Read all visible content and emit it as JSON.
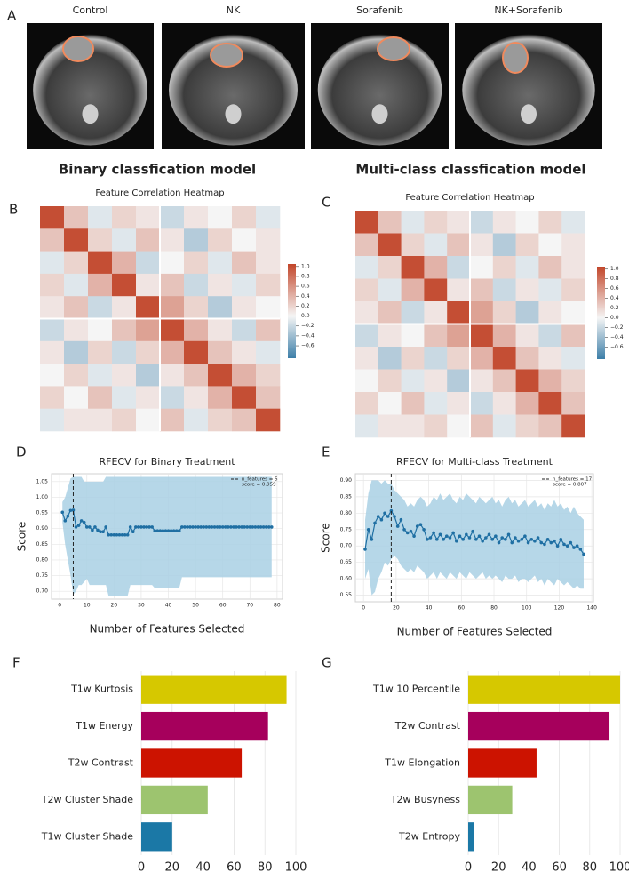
{
  "panel_labels": [
    "A",
    "B",
    "C",
    "D",
    "E",
    "F",
    "G"
  ],
  "mri": {
    "labels": [
      "Control",
      "NK",
      "Sorafenib",
      "NK+Sorafenib"
    ]
  },
  "headings": [
    "Binary classfication model",
    "Multi-class classfication model"
  ],
  "chart_data": [
    {
      "type": "heatmap",
      "title": "Feature Correlation Heatmap",
      "matrix": [
        [
          1,
          0.3,
          -0.1,
          0.2,
          0.1,
          -0.2,
          0.1,
          0.0,
          0.2,
          -0.1
        ],
        [
          0.3,
          1,
          0.2,
          -0.1,
          0.3,
          0.1,
          -0.3,
          0.2,
          0.0,
          0.1
        ],
        [
          -0.1,
          0.2,
          1,
          0.4,
          -0.2,
          0.0,
          0.2,
          -0.1,
          0.3,
          0.1
        ],
        [
          0.2,
          -0.1,
          0.4,
          1,
          0.1,
          0.3,
          -0.2,
          0.1,
          -0.1,
          0.2
        ],
        [
          0.1,
          0.3,
          -0.2,
          0.1,
          1,
          0.5,
          0.2,
          -0.3,
          0.1,
          0.0
        ],
        [
          -0.2,
          0.1,
          0.0,
          0.3,
          0.5,
          1,
          0.4,
          0.1,
          -0.2,
          0.3
        ],
        [
          0.1,
          -0.3,
          0.2,
          -0.2,
          0.2,
          0.4,
          1,
          0.3,
          0.1,
          -0.1
        ],
        [
          0.0,
          0.2,
          -0.1,
          0.1,
          -0.3,
          0.1,
          0.3,
          1,
          0.4,
          0.2
        ],
        [
          0.2,
          0.0,
          0.3,
          -0.1,
          0.1,
          -0.2,
          0.1,
          0.4,
          1,
          0.3
        ],
        [
          -0.1,
          0.1,
          0.1,
          0.2,
          0.0,
          0.3,
          -0.1,
          0.2,
          0.3,
          1
        ]
      ],
      "clim": [
        -0.85,
        1.05
      ],
      "colors": [
        "#3c7ea8",
        "#f5f5f5",
        "#c2462a"
      ],
      "colorbar_ticks": [
        {
          "value": 1,
          "label": "1.0"
        },
        {
          "value": 0.8,
          "label": "0.8"
        },
        {
          "value": 0.6,
          "label": "0.6"
        },
        {
          "value": 0.4,
          "label": "0.4"
        },
        {
          "value": 0.2,
          "label": "0.2"
        },
        {
          "value": 0,
          "label": "0.0"
        },
        {
          "value": -0.2,
          "label": "−0.2"
        },
        {
          "value": -0.4,
          "label": "−0.4"
        },
        {
          "value": -0.6,
          "label": "−0.6"
        }
      ]
    },
    {
      "type": "heatmap",
      "title": "Feature Correlation Heatmap",
      "matrix": [
        [
          1,
          0.3,
          -0.1,
          0.2,
          0.1,
          -0.2,
          0.1,
          0.0,
          0.2,
          -0.1
        ],
        [
          0.3,
          1,
          0.2,
          -0.1,
          0.3,
          0.1,
          -0.3,
          0.2,
          0.0,
          0.1
        ],
        [
          -0.1,
          0.2,
          1,
          0.4,
          -0.2,
          0.0,
          0.2,
          -0.1,
          0.3,
          0.1
        ],
        [
          0.2,
          -0.1,
          0.4,
          1,
          0.1,
          0.3,
          -0.2,
          0.1,
          -0.1,
          0.2
        ],
        [
          0.1,
          0.3,
          -0.2,
          0.1,
          1,
          0.5,
          0.2,
          -0.3,
          0.1,
          0.0
        ],
        [
          -0.2,
          0.1,
          0.0,
          0.3,
          0.5,
          1,
          0.4,
          0.1,
          -0.2,
          0.3
        ],
        [
          0.1,
          -0.3,
          0.2,
          -0.2,
          0.2,
          0.4,
          1,
          0.3,
          0.1,
          -0.1
        ],
        [
          0.0,
          0.2,
          -0.1,
          0.1,
          -0.3,
          0.1,
          0.3,
          1,
          0.4,
          0.2
        ],
        [
          0.2,
          0.0,
          0.3,
          -0.1,
          0.1,
          -0.2,
          0.1,
          0.4,
          1,
          0.3
        ],
        [
          -0.1,
          0.1,
          0.1,
          0.2,
          0.0,
          0.3,
          -0.1,
          0.2,
          0.3,
          1
        ]
      ],
      "clim": [
        -0.85,
        1.05
      ],
      "colors": [
        "#3c7ea8",
        "#f5f5f5",
        "#c2462a"
      ],
      "colorbar_ticks": [
        {
          "value": 1,
          "label": "1.0"
        },
        {
          "value": 0.8,
          "label": "0.8"
        },
        {
          "value": 0.6,
          "label": "0.6"
        },
        {
          "value": 0.4,
          "label": "0.4"
        },
        {
          "value": 0.2,
          "label": "0.2"
        },
        {
          "value": 0,
          "label": "0.0"
        },
        {
          "value": -0.2,
          "label": "−0.2"
        },
        {
          "value": -0.4,
          "label": "−0.4"
        },
        {
          "value": -0.6,
          "label": "−0.6"
        }
      ]
    },
    {
      "type": "line",
      "title": "RFECV for Binary Treatment",
      "xlabel": "Number of Features Selected",
      "ylabel": "Score",
      "x": [
        1,
        2,
        3,
        4,
        5,
        6,
        7,
        8,
        9,
        10,
        11,
        12,
        13,
        14,
        15,
        16,
        17,
        18,
        19,
        20,
        21,
        22,
        23,
        24,
        25,
        26,
        27,
        28,
        29,
        30,
        31,
        32,
        33,
        34,
        35,
        36,
        37,
        38,
        39,
        40,
        41,
        42,
        43,
        44,
        45,
        46,
        47,
        48,
        49,
        50,
        51,
        52,
        53,
        54,
        55,
        56,
        57,
        58,
        59,
        60,
        61,
        62,
        63,
        64,
        65,
        66,
        67,
        68,
        69,
        70,
        71,
        72,
        73,
        74,
        75,
        76,
        77,
        78
      ],
      "values": [
        0.952,
        0.925,
        0.94,
        0.958,
        0.959,
        0.905,
        0.91,
        0.925,
        0.92,
        0.905,
        0.905,
        0.895,
        0.905,
        0.895,
        0.89,
        0.89,
        0.905,
        0.88,
        0.88,
        0.88,
        0.88,
        0.88,
        0.88,
        0.88,
        0.88,
        0.905,
        0.89,
        0.905,
        0.905,
        0.905,
        0.905,
        0.905,
        0.905,
        0.905,
        0.893,
        0.893,
        0.893,
        0.893,
        0.893,
        0.893,
        0.893,
        0.893,
        0.893,
        0.893,
        0.905,
        0.905,
        0.905,
        0.905,
        0.905,
        0.905,
        0.905,
        0.905,
        0.905,
        0.905,
        0.905,
        0.905,
        0.905,
        0.905,
        0.905,
        0.905,
        0.905,
        0.905,
        0.905,
        0.905,
        0.905,
        0.905,
        0.905,
        0.905,
        0.905,
        0.905,
        0.905,
        0.905,
        0.905,
        0.905,
        0.905,
        0.905,
        0.905,
        0.905
      ],
      "band_upper": [
        0.985,
        1.0,
        1.03,
        1.06,
        1.065,
        1.065,
        1.065,
        1.065,
        1.05,
        1.05,
        1.05,
        1.05,
        1.05,
        1.05,
        1.05,
        1.05,
        1.065,
        1.065,
        1.065,
        1.065,
        1.065,
        1.065,
        1.065,
        1.065,
        1.065,
        1.065,
        1.065,
        1.065,
        1.065,
        1.065,
        1.065,
        1.065,
        1.065,
        1.065,
        1.065,
        1.065,
        1.065,
        1.065,
        1.065,
        1.065,
        1.065,
        1.065,
        1.065,
        1.065,
        1.065,
        1.065,
        1.065,
        1.065,
        1.065,
        1.065,
        1.065,
        1.065,
        1.065,
        1.065,
        1.065,
        1.065,
        1.065,
        1.065,
        1.065,
        1.065,
        1.065,
        1.065,
        1.065,
        1.065,
        1.065,
        1.065,
        1.065,
        1.065,
        1.065,
        1.065,
        1.065,
        1.065,
        1.065,
        1.065,
        1.065,
        1.065,
        1.065,
        1.065
      ],
      "band_lower": [
        0.92,
        0.85,
        0.8,
        0.75,
        0.69,
        0.7,
        0.72,
        0.72,
        0.73,
        0.74,
        0.72,
        0.72,
        0.72,
        0.72,
        0.72,
        0.72,
        0.72,
        0.685,
        0.685,
        0.685,
        0.685,
        0.685,
        0.685,
        0.685,
        0.685,
        0.72,
        0.72,
        0.72,
        0.72,
        0.72,
        0.72,
        0.72,
        0.72,
        0.72,
        0.71,
        0.71,
        0.71,
        0.71,
        0.71,
        0.71,
        0.71,
        0.71,
        0.71,
        0.71,
        0.745,
        0.745,
        0.745,
        0.745,
        0.745,
        0.745,
        0.745,
        0.745,
        0.745,
        0.745,
        0.745,
        0.745,
        0.745,
        0.745,
        0.745,
        0.745,
        0.745,
        0.745,
        0.745,
        0.745,
        0.745,
        0.745,
        0.745,
        0.745,
        0.745,
        0.745,
        0.745,
        0.745,
        0.745,
        0.745,
        0.745,
        0.745,
        0.745,
        0.745
      ],
      "color": "#1f6fa3",
      "band_color": "#a9d0e4",
      "xlim": [
        -3,
        82
      ],
      "ylim": [
        0.675,
        1.075
      ],
      "xticks": [
        0,
        10,
        20,
        30,
        40,
        50,
        60,
        70,
        80
      ],
      "yticks": [
        {
          "value": 0.7,
          "label": "0.70"
        },
        {
          "value": 0.75,
          "label": "0.75"
        },
        {
          "value": 0.8,
          "label": "0.80"
        },
        {
          "value": 0.85,
          "label": "0.85"
        },
        {
          "value": 0.9,
          "label": "0.90"
        },
        {
          "value": 0.95,
          "label": "0.95"
        },
        {
          "value": 1,
          "label": "1.00"
        },
        {
          "value": 1.05,
          "label": "1.05"
        }
      ],
      "grid": true,
      "selected_x": 5,
      "legend_lines": [
        "n_features = 5",
        "score = 0.959"
      ]
    },
    {
      "type": "line",
      "title": "RFECV for Multi-class Treatment",
      "xlabel": "Number of Features Selected",
      "ylabel": "Score",
      "x": [
        1,
        3,
        5,
        7,
        9,
        11,
        13,
        15,
        17,
        19,
        21,
        23,
        25,
        27,
        29,
        31,
        33,
        35,
        37,
        39,
        41,
        43,
        45,
        47,
        49,
        51,
        53,
        55,
        57,
        59,
        61,
        63,
        65,
        67,
        69,
        71,
        73,
        75,
        77,
        79,
        81,
        83,
        85,
        87,
        89,
        91,
        93,
        95,
        97,
        99,
        101,
        103,
        105,
        107,
        109,
        111,
        113,
        115,
        117,
        119,
        121,
        123,
        125,
        127,
        129,
        131,
        133,
        135
      ],
      "values": [
        0.69,
        0.75,
        0.72,
        0.77,
        0.79,
        0.78,
        0.8,
        0.79,
        0.807,
        0.79,
        0.76,
        0.78,
        0.75,
        0.74,
        0.745,
        0.73,
        0.76,
        0.765,
        0.75,
        0.72,
        0.725,
        0.74,
        0.72,
        0.735,
        0.72,
        0.73,
        0.725,
        0.74,
        0.715,
        0.73,
        0.72,
        0.735,
        0.725,
        0.745,
        0.72,
        0.73,
        0.715,
        0.725,
        0.735,
        0.72,
        0.73,
        0.71,
        0.725,
        0.72,
        0.735,
        0.71,
        0.725,
        0.715,
        0.72,
        0.73,
        0.71,
        0.72,
        0.715,
        0.725,
        0.71,
        0.705,
        0.72,
        0.71,
        0.715,
        0.7,
        0.72,
        0.705,
        0.7,
        0.71,
        0.695,
        0.7,
        0.69,
        0.675
      ],
      "band_upper": [
        0.78,
        0.86,
        0.9,
        0.9,
        0.9,
        0.89,
        0.9,
        0.89,
        0.89,
        0.87,
        0.86,
        0.85,
        0.84,
        0.82,
        0.83,
        0.82,
        0.84,
        0.85,
        0.84,
        0.82,
        0.83,
        0.85,
        0.84,
        0.86,
        0.84,
        0.85,
        0.86,
        0.84,
        0.83,
        0.85,
        0.84,
        0.86,
        0.85,
        0.84,
        0.83,
        0.85,
        0.84,
        0.83,
        0.84,
        0.85,
        0.83,
        0.84,
        0.82,
        0.84,
        0.85,
        0.83,
        0.84,
        0.82,
        0.83,
        0.84,
        0.82,
        0.83,
        0.84,
        0.82,
        0.83,
        0.81,
        0.83,
        0.82,
        0.84,
        0.82,
        0.83,
        0.81,
        0.82,
        0.8,
        0.82,
        0.8,
        0.79,
        0.78
      ],
      "band_lower": [
        0.6,
        0.63,
        0.55,
        0.56,
        0.6,
        0.62,
        0.65,
        0.64,
        0.66,
        0.67,
        0.66,
        0.64,
        0.63,
        0.62,
        0.63,
        0.62,
        0.64,
        0.63,
        0.62,
        0.6,
        0.61,
        0.62,
        0.6,
        0.62,
        0.61,
        0.6,
        0.62,
        0.61,
        0.6,
        0.62,
        0.61,
        0.6,
        0.62,
        0.61,
        0.6,
        0.61,
        0.62,
        0.6,
        0.61,
        0.6,
        0.61,
        0.6,
        0.59,
        0.61,
        0.6,
        0.6,
        0.61,
        0.59,
        0.6,
        0.6,
        0.59,
        0.6,
        0.61,
        0.59,
        0.6,
        0.58,
        0.6,
        0.59,
        0.58,
        0.6,
        0.59,
        0.58,
        0.59,
        0.58,
        0.57,
        0.58,
        0.57,
        0.57
      ],
      "color": "#1f6fa3",
      "band_color": "#a9d0e4",
      "xlim": [
        -5,
        141
      ],
      "ylim": [
        0.53,
        0.92
      ],
      "xticks": [
        0,
        20,
        40,
        60,
        80,
        100,
        120,
        140
      ],
      "yticks": [
        {
          "value": 0.55,
          "label": "0.55"
        },
        {
          "value": 0.6,
          "label": "0.60"
        },
        {
          "value": 0.65,
          "label": "0.65"
        },
        {
          "value": 0.7,
          "label": "0.70"
        },
        {
          "value": 0.75,
          "label": "0.75"
        },
        {
          "value": 0.8,
          "label": "0.80"
        },
        {
          "value": 0.85,
          "label": "0.85"
        },
        {
          "value": 0.9,
          "label": "0.90"
        }
      ],
      "grid": true,
      "selected_x": 17,
      "legend_lines": [
        "n_features = 17",
        "score = 0.807"
      ]
    },
    {
      "type": "barh",
      "categories": [
        "T1w Kurtosis",
        "T1w Energy",
        "T2w Contrast",
        "T2w Cluster Shade",
        "T1w Cluster Shade"
      ],
      "values": [
        94,
        82,
        65,
        43,
        20
      ],
      "colors": [
        "#d6c800",
        "#a6005c",
        "#cc1300",
        "#9dc46f",
        "#1b78a6"
      ],
      "xlim": [
        0,
        100
      ],
      "xticks": [
        0,
        20,
        40,
        60,
        80,
        100
      ],
      "grid": true
    },
    {
      "type": "barh",
      "categories": [
        "T1w 10 Percentile",
        "T2w Contrast",
        "T1w Elongation",
        "T2w Busyness",
        "T2w Entropy"
      ],
      "values": [
        100,
        93,
        45,
        29,
        4
      ],
      "colors": [
        "#d6c800",
        "#a6005c",
        "#cc1300",
        "#9dc46f",
        "#1b78a6"
      ],
      "xlim": [
        0,
        100
      ],
      "xticks": [
        0,
        20,
        40,
        60,
        80,
        100
      ],
      "grid": true
    }
  ]
}
